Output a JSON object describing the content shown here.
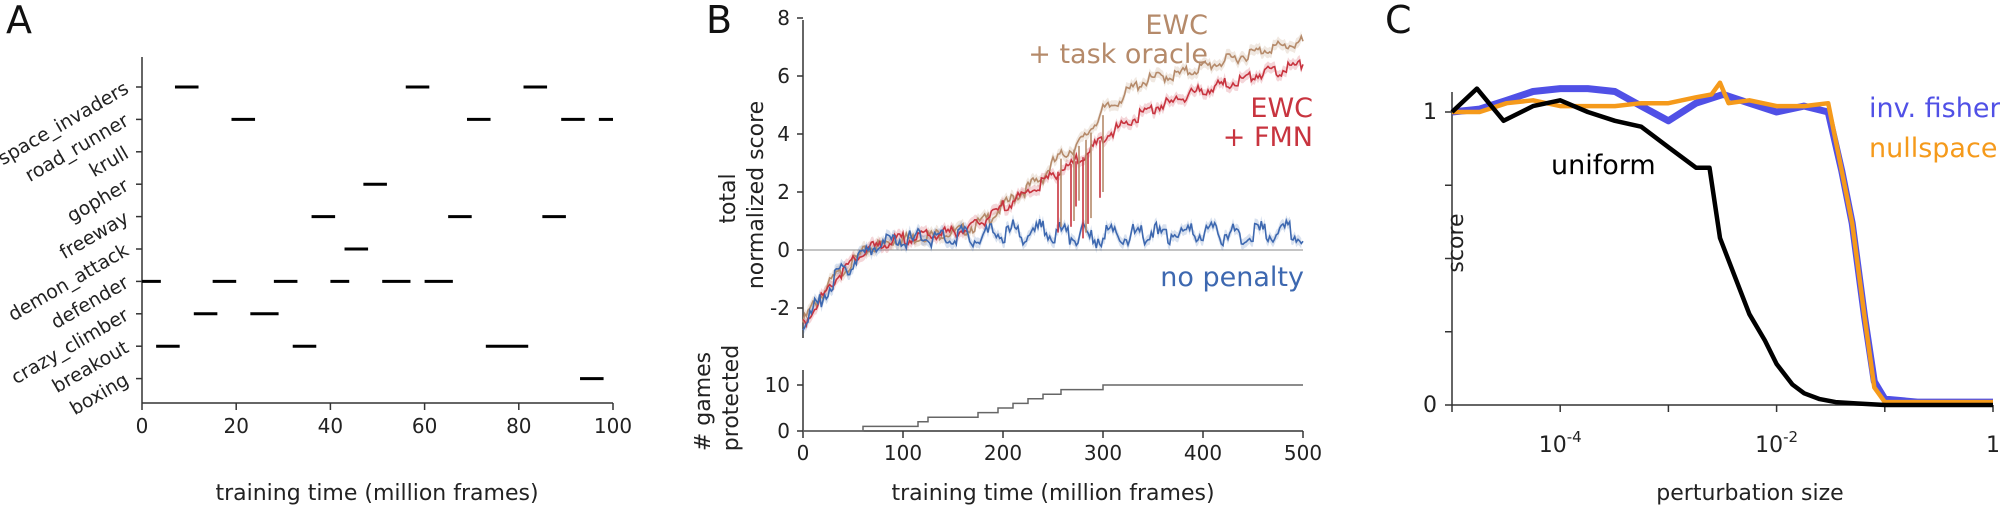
{
  "panels": {
    "a": {
      "label": "A"
    },
    "b": {
      "label": "B"
    },
    "c": {
      "label": "C"
    }
  },
  "chart_data": [
    {
      "panel": "A",
      "type": "scatter",
      "xlabel": "training time (million frames)",
      "xlim": [
        0,
        100
      ],
      "xticks": [
        "0",
        "20",
        "40",
        "60",
        "80",
        "100"
      ],
      "games": [
        "space_invaders",
        "road_runner",
        "krull",
        "gopher",
        "freeway",
        "demon_attack",
        "defender",
        "crazy_climber",
        "breakout",
        "boxing"
      ],
      "segments": {
        "space_invaders": [
          [
            7,
            12
          ],
          [
            56,
            61
          ],
          [
            81,
            86
          ]
        ],
        "road_runner": [
          [
            19,
            24
          ],
          [
            69,
            74
          ],
          [
            89,
            94
          ],
          [
            97,
            100
          ]
        ],
        "krull": [],
        "gopher": [
          [
            47,
            52
          ]
        ],
        "freeway": [
          [
            36,
            41
          ],
          [
            65,
            70
          ],
          [
            85,
            90
          ]
        ],
        "demon_attack": [
          [
            43,
            48
          ]
        ],
        "defender": [
          [
            0,
            4
          ],
          [
            15,
            20
          ],
          [
            28,
            33
          ],
          [
            40,
            44
          ],
          [
            51,
            57
          ],
          [
            60,
            66
          ]
        ],
        "crazy_climber": [
          [
            11,
            16
          ],
          [
            23,
            29
          ]
        ],
        "breakout": [
          [
            3,
            8
          ],
          [
            32,
            37
          ],
          [
            73,
            82
          ]
        ],
        "boxing": [
          [
            93,
            98
          ]
        ]
      }
    },
    {
      "panel": "B",
      "type": "line",
      "ylabel": "total normalized score",
      "ylim": [
        -3,
        8
      ],
      "yticks": [
        "-2",
        "0",
        "2",
        "4",
        "6",
        "8"
      ],
      "series": [
        {
          "name": "EWC + task oracle",
          "label_lines": [
            "EWC",
            "+ task oracle"
          ],
          "color": "#b58a6a",
          "x": [
            0,
            10,
            20,
            30,
            40,
            50,
            60,
            70,
            80,
            90,
            100,
            110,
            120,
            130,
            140,
            150,
            160,
            170,
            180,
            190,
            200,
            210,
            220,
            230,
            240,
            250,
            260,
            270,
            280,
            290,
            300,
            310,
            320,
            330,
            340,
            350,
            360,
            370,
            380,
            390,
            400,
            410,
            420,
            430,
            440,
            450,
            460,
            470,
            480,
            490,
            500
          ],
          "y": [
            -2.5,
            -1.9,
            -1.5,
            -1.0,
            -0.7,
            -0.4,
            -0.1,
            0.1,
            0.2,
            0.3,
            0.4,
            0.4,
            0.5,
            0.5,
            0.6,
            0.6,
            0.7,
            0.8,
            1.0,
            1.2,
            1.5,
            1.8,
            2.0,
            2.3,
            2.5,
            3.0,
            3.3,
            3.5,
            3.8,
            4.3,
            4.8,
            5.0,
            5.3,
            5.6,
            5.8,
            5.9,
            6.0,
            6.0,
            6.1,
            6.2,
            6.3,
            6.4,
            6.5,
            6.6,
            6.7,
            6.8,
            6.9,
            7.0,
            7.0,
            7.1,
            7.2
          ]
        },
        {
          "name": "EWC + FMN",
          "label_lines": [
            "EWC",
            "+ FMN"
          ],
          "color": "#c8343f",
          "x": [
            0,
            10,
            20,
            30,
            40,
            50,
            60,
            70,
            80,
            90,
            100,
            110,
            120,
            130,
            140,
            150,
            160,
            170,
            180,
            190,
            200,
            210,
            220,
            230,
            240,
            250,
            260,
            270,
            280,
            290,
            300,
            310,
            320,
            330,
            340,
            350,
            360,
            370,
            380,
            390,
            400,
            410,
            420,
            430,
            440,
            450,
            460,
            470,
            480,
            490,
            500
          ],
          "y": [
            -2.6,
            -2.0,
            -1.6,
            -1.1,
            -0.7,
            -0.4,
            -0.1,
            0.1,
            0.2,
            0.3,
            0.4,
            0.4,
            0.5,
            0.5,
            0.6,
            0.6,
            0.7,
            0.8,
            1.0,
            1.2,
            1.5,
            1.7,
            1.9,
            2.1,
            2.3,
            2.6,
            2.8,
            3.0,
            3.2,
            3.5,
            3.9,
            4.1,
            4.3,
            4.5,
            4.7,
            4.9,
            5.0,
            5.1,
            5.3,
            5.4,
            5.5,
            5.6,
            5.7,
            5.8,
            5.9,
            6.0,
            6.1,
            6.2,
            6.2,
            6.3,
            6.4
          ]
        },
        {
          "name": "no penalty",
          "label_lines": [
            "no penalty"
          ],
          "color": "#3d68b0",
          "x": [
            0,
            10,
            20,
            30,
            40,
            50,
            60,
            70,
            80,
            90,
            100,
            110,
            120,
            130,
            140,
            150,
            160,
            170,
            180,
            190,
            200,
            210,
            220,
            230,
            240,
            250,
            260,
            270,
            280,
            290,
            300,
            310,
            320,
            330,
            340,
            350,
            360,
            370,
            380,
            390,
            400,
            410,
            420,
            430,
            440,
            450,
            460,
            470,
            480,
            490,
            500
          ],
          "y": [
            -2.7,
            -2.1,
            -1.6,
            -1.1,
            -0.7,
            -0.4,
            -0.2,
            0.1,
            0.2,
            0.3,
            0.4,
            0.3,
            0.5,
            0.4,
            0.5,
            0.4,
            0.6,
            0.4,
            0.5,
            0.6,
            0.5,
            0.7,
            0.5,
            0.6,
            0.8,
            0.5,
            0.7,
            0.4,
            0.6,
            0.3,
            0.5,
            0.6,
            0.4,
            0.6,
            0.5,
            0.7,
            0.4,
            0.6,
            0.5,
            0.6,
            0.5,
            0.7,
            0.5,
            0.6,
            0.4,
            0.6,
            0.7,
            0.5,
            0.8,
            0.6,
            0.3
          ]
        }
      ],
      "spikes": [
        {
          "x": 255,
          "low": 0.6
        },
        {
          "x": 268,
          "low": 0.8
        },
        {
          "x": 273,
          "low": 1.5
        },
        {
          "x": 280,
          "low": 0.4
        },
        {
          "x": 285,
          "low": 0.9
        },
        {
          "x": 297,
          "low": 1.8
        }
      ]
    },
    {
      "panel": "B (lower)",
      "type": "line",
      "xlabel": "training time (million frames)",
      "ylabel": "# games protected",
      "xlim": [
        0,
        500
      ],
      "ylim": [
        0,
        10
      ],
      "xticks": [
        "0",
        "100",
        "200",
        "300",
        "400",
        "500"
      ],
      "yticks": [
        "0",
        "10"
      ],
      "x": [
        0,
        60,
        115,
        125,
        175,
        195,
        210,
        225,
        240,
        258,
        275,
        300,
        500
      ],
      "y": [
        0,
        1,
        2,
        3,
        4,
        5,
        6,
        7,
        8,
        9,
        9,
        10,
        10
      ]
    },
    {
      "panel": "C",
      "type": "line",
      "xlabel": "perturbation size",
      "ylabel": "score",
      "xscale": "log",
      "xlim": [
        1e-05,
        1
      ],
      "ylim": [
        0,
        1.1
      ],
      "xticks": [
        "10",
        "10",
        "1"
      ],
      "xtick_exponents": [
        "-4",
        "-2",
        ""
      ],
      "yticks": [
        "0",
        "1"
      ],
      "series": [
        {
          "name": "uniform",
          "color": "#000000",
          "x": [
            1e-05,
            1.7e-05,
            3e-05,
            5.6e-05,
            0.0001,
            0.00018,
            0.00032,
            0.00056,
            0.001,
            0.0018,
            0.0024,
            0.003,
            0.004,
            0.0056,
            0.0078,
            0.01,
            0.014,
            0.018,
            0.025,
            0.035,
            0.056,
            0.1,
            1
          ],
          "y": [
            1.0,
            1.08,
            0.97,
            1.02,
            1.04,
            1.0,
            0.97,
            0.95,
            0.88,
            0.81,
            0.81,
            0.57,
            0.45,
            0.31,
            0.22,
            0.14,
            0.07,
            0.04,
            0.02,
            0.01,
            0.005,
            0.0,
            0.0
          ]
        },
        {
          "name": "inv. fisher",
          "color": "#5050e6",
          "x": [
            1e-05,
            1.8e-05,
            3.2e-05,
            5.6e-05,
            0.0001,
            0.00018,
            0.00032,
            0.00056,
            0.001,
            0.0018,
            0.0032,
            0.0056,
            0.01,
            0.018,
            0.03,
            0.04,
            0.05,
            0.065,
            0.08,
            0.1,
            0.2,
            1
          ],
          "y": [
            1.0,
            1.01,
            1.04,
            1.07,
            1.08,
            1.08,
            1.07,
            1.02,
            0.97,
            1.03,
            1.06,
            1.03,
            1.0,
            1.02,
            1.0,
            0.8,
            0.62,
            0.3,
            0.08,
            0.02,
            0.01,
            0.01
          ]
        },
        {
          "name": "nullspace",
          "color": "#f59a1b",
          "x": [
            1e-05,
            1.8e-05,
            3.2e-05,
            5.6e-05,
            0.0001,
            0.00018,
            0.00032,
            0.00056,
            0.001,
            0.0018,
            0.0025,
            0.003,
            0.0036,
            0.0056,
            0.01,
            0.018,
            0.03,
            0.04,
            0.05,
            0.065,
            0.08,
            0.1,
            0.2,
            1
          ],
          "y": [
            1.0,
            1.0,
            1.03,
            1.04,
            1.02,
            1.02,
            1.02,
            1.03,
            1.03,
            1.05,
            1.06,
            1.1,
            1.03,
            1.04,
            1.02,
            1.02,
            1.03,
            0.8,
            0.62,
            0.3,
            0.06,
            0.01,
            0.01,
            0.01
          ]
        }
      ]
    }
  ]
}
